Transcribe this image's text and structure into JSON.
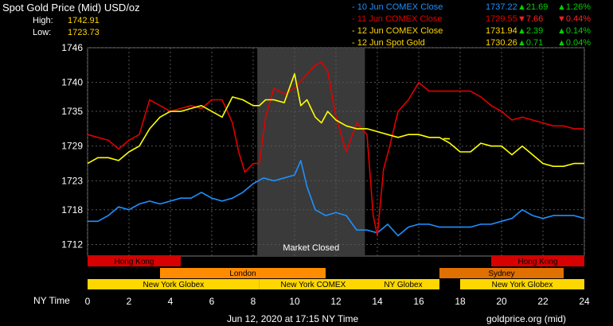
{
  "header": {
    "title": "Spot Gold Price (Mid) USD/oz",
    "high_label": "High:",
    "high_value": "1742.91",
    "low_label": "Low:",
    "low_value": "1723.73"
  },
  "legend": [
    {
      "name": "10 Jun COMEX Close",
      "price": "1737.22",
      "change": "▲21.69",
      "pct": "▲1.26%",
      "color": "#1e90ff",
      "dir": "up"
    },
    {
      "name": "11 Jun COMEX Close",
      "price": "1729.55",
      "change": "▼7.66",
      "pct": "▼0.44%",
      "color": "#e00000",
      "dir": "down"
    },
    {
      "name": "12 Jun COMEX Close",
      "price": "1731.94",
      "change": "▲2.39",
      "pct": "▲0.14%",
      "color": "#ffd700",
      "dir": "up"
    },
    {
      "name": "12 Jun Spot Gold",
      "price": "1730.26",
      "change": "▲0.71",
      "pct": "▲0.04%",
      "color": "#ffd700",
      "dir": "up"
    }
  ],
  "colors": {
    "up": "#00d000",
    "down": "#ff2020",
    "blue": "#1e90ff",
    "red": "#e00000",
    "yellow": "#ffff00",
    "band_hk": "#d80000",
    "band_london": "#ff8c00",
    "band_ny": "#ffd700",
    "band_sydney": "#e07000",
    "closed": "#3a3a3a"
  },
  "market_closed_label": "Market Closed",
  "x_axis_title": "NY Time",
  "footer_left": "Jun 12, 2020 at 17:15 NY Time",
  "footer_right": "goldprice.org (mid)",
  "sessions": [
    {
      "label": "Hong Kong",
      "start": 0,
      "end": 4.5,
      "row": 0,
      "color": "#d80000"
    },
    {
      "label": "Hong Kong",
      "start": 19.5,
      "end": 24,
      "row": 0,
      "color": "#d80000"
    },
    {
      "label": "London",
      "start": 3.5,
      "end": 11.5,
      "row": 1,
      "color": "#ff8c00"
    },
    {
      "label": "Sydney",
      "start": 17,
      "end": 23,
      "row": 1,
      "color": "#e07000"
    },
    {
      "label": "New York Globex",
      "start": 0,
      "end": 8.3,
      "row": 2,
      "color": "#ffd700"
    },
    {
      "label": "New York COMEX",
      "start": 8.3,
      "end": 13.5,
      "row": 2,
      "color": "#ffd700"
    },
    {
      "label": "NY Globex",
      "start": 13.5,
      "end": 17,
      "row": 2,
      "color": "#ffd700"
    },
    {
      "label": "New York Globex",
      "start": 18,
      "end": 24,
      "row": 2,
      "color": "#ffd700"
    }
  ],
  "chart_data": {
    "type": "line",
    "title": "Spot Gold Price (Mid) USD/oz",
    "xlabel": "NY Time",
    "ylabel": "",
    "xlim": [
      0,
      24
    ],
    "ylim": [
      1710,
      1746
    ],
    "x_ticks": [
      0,
      2,
      4,
      6,
      8,
      10,
      12,
      14,
      16,
      18,
      20,
      22,
      24
    ],
    "x_tick_labels": [
      "0",
      "2",
      "4",
      "6",
      "8",
      "10",
      "12",
      "14",
      "16",
      "18",
      "20",
      "22",
      "24"
    ],
    "y_ticks": [
      1712,
      1718,
      1723,
      1729,
      1735,
      1740,
      1746
    ],
    "y_tick_labels": [
      "1712",
      "1718",
      "1723",
      "1729",
      "1735",
      "1740",
      "1746"
    ],
    "market_closed_range": [
      8.2,
      13.4
    ],
    "grid": true,
    "series": [
      {
        "name": "10 Jun COMEX Close",
        "color": "#1e90ff",
        "x": [
          0,
          0.5,
          1,
          1.5,
          2,
          2.5,
          3,
          3.5,
          4,
          4.5,
          5,
          5.5,
          6,
          6.5,
          7,
          7.5,
          8,
          8.5,
          9,
          9.5,
          10,
          10.3,
          10.6,
          11,
          11.5,
          12,
          12.5,
          13,
          13.5,
          14,
          14.5,
          15,
          15.5,
          16,
          16.5,
          17,
          17.5,
          18,
          18.5,
          19,
          19.5,
          20,
          20.5,
          21,
          21.5,
          22,
          22.5,
          23,
          23.5,
          24
        ],
        "y": [
          1716,
          1716,
          1717,
          1718.5,
          1718,
          1719,
          1719.5,
          1719,
          1719.5,
          1720,
          1720,
          1721,
          1720,
          1719.5,
          1720,
          1721,
          1722.5,
          1723.5,
          1723,
          1723.5,
          1724,
          1726.5,
          1722,
          1718,
          1717,
          1717.5,
          1717,
          1714.5,
          1714.5,
          1714,
          1715.5,
          1713.5,
          1715,
          1715.5,
          1715.5,
          1715,
          1715,
          1715,
          1715,
          1715.5,
          1715.5,
          1716,
          1716.5,
          1718,
          1717,
          1716.5,
          1717,
          1717,
          1717,
          1716.5
        ]
      },
      {
        "name": "11 Jun COMEX Close",
        "color": "#e00000",
        "x": [
          0,
          0.5,
          1,
          1.5,
          2,
          2.5,
          3,
          3.5,
          4,
          4.5,
          5,
          5.5,
          6,
          6.5,
          7,
          7.3,
          7.6,
          8,
          8.3,
          8.6,
          9,
          9.5,
          10,
          10.5,
          11,
          11.3,
          11.6,
          12,
          12.5,
          13,
          13.5,
          13.8,
          14,
          14.3,
          14.6,
          15,
          15.5,
          16,
          16.5,
          17,
          17.5,
          18,
          18.5,
          19,
          19.5,
          20,
          20.5,
          21,
          21.5,
          22,
          22.5,
          23,
          23.5,
          24
        ],
        "y": [
          1731,
          1730.5,
          1730,
          1728.5,
          1730,
          1731,
          1737,
          1736,
          1735,
          1735.5,
          1736,
          1735.5,
          1737,
          1737,
          1733,
          1728,
          1724.5,
          1726,
          1726,
          1734,
          1739,
          1738,
          1739,
          1741,
          1743,
          1743.5,
          1742,
          1734,
          1728,
          1733,
          1731,
          1717,
          1713.5,
          1725,
          1729,
          1735,
          1737,
          1740,
          1738.5,
          1738.5,
          1738.5,
          1738.5,
          1738.5,
          1737.5,
          1736,
          1735,
          1733.5,
          1734,
          1733.5,
          1733,
          1732.5,
          1732.5,
          1732,
          1732
        ]
      },
      {
        "name": "12 Jun COMEX Close",
        "color": "#ffff00",
        "x": [
          0,
          0.5,
          1,
          1.5,
          2,
          2.5,
          3,
          3.5,
          4,
          4.5,
          5,
          5.5,
          6,
          6.5,
          7,
          7.5,
          8,
          8.3,
          8.6,
          9,
          9.5,
          10,
          10.3,
          10.6,
          11,
          11.3,
          11.6,
          12,
          12.5,
          13,
          13.5,
          14,
          14.5,
          15,
          15.5,
          16,
          16.5,
          17,
          17.5,
          18,
          18.5,
          19,
          19.5,
          20,
          20.5,
          21,
          21.5,
          22,
          22.5,
          23,
          23.5,
          24
        ],
        "y": [
          1726,
          1727,
          1727,
          1726.5,
          1728,
          1729,
          1732,
          1734,
          1735,
          1735,
          1735.5,
          1736,
          1735,
          1734,
          1737.5,
          1737,
          1736,
          1736,
          1737,
          1737,
          1736.5,
          1741.5,
          1736,
          1737,
          1734,
          1733,
          1735,
          1733.5,
          1732.5,
          1732,
          1732,
          1731.5,
          1731,
          1730.5,
          1731,
          1731,
          1730.5,
          1730.5,
          1729.5,
          1728,
          1728,
          1729.5,
          1729,
          1729,
          1727.5,
          1729,
          1727.5,
          1726,
          1725.5,
          1725.5,
          1726,
          1726
        ]
      },
      {
        "name": "12 Jun Spot Gold",
        "color": "#ffff00",
        "x": [
          17.2,
          17.5
        ],
        "y": [
          1730.3,
          1730.26
        ]
      }
    ]
  }
}
